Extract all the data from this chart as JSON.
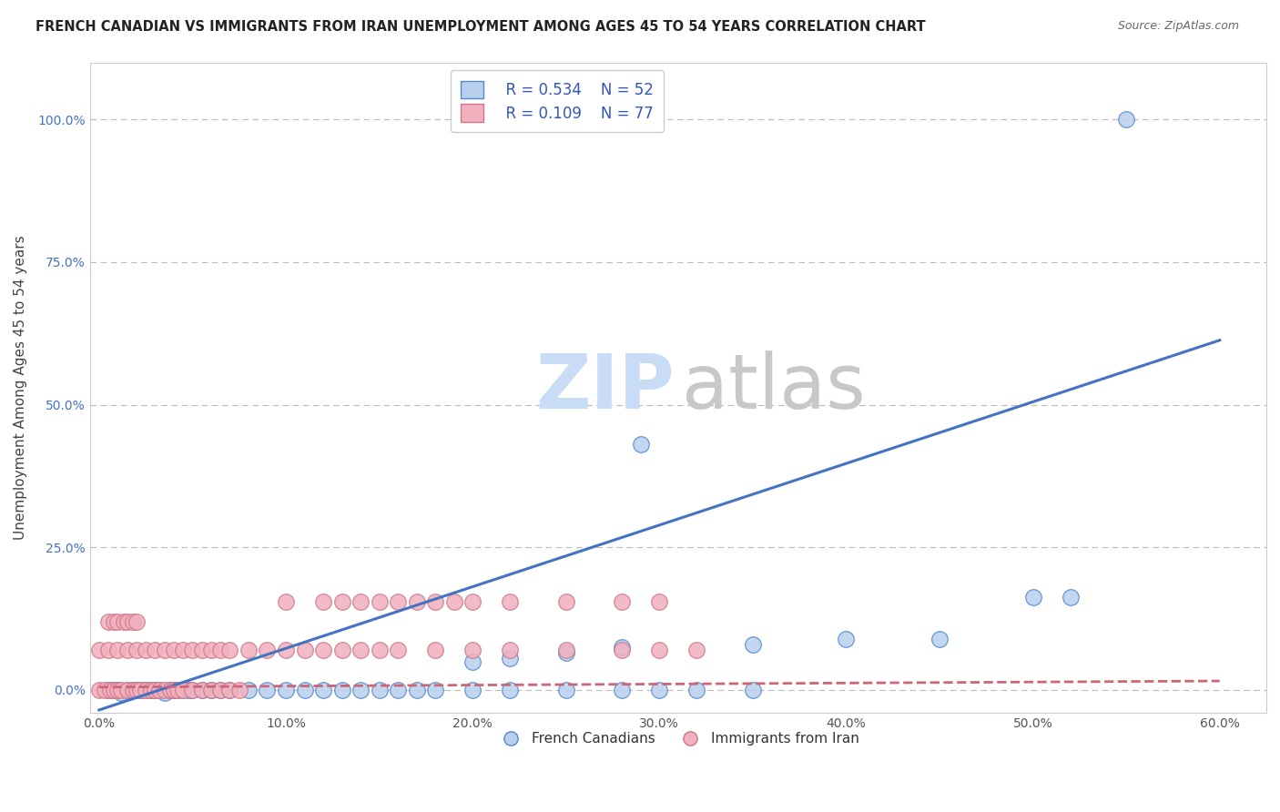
{
  "title": "FRENCH CANADIAN VS IMMIGRANTS FROM IRAN UNEMPLOYMENT AMONG AGES 45 TO 54 YEARS CORRELATION CHART",
  "source": "Source: ZipAtlas.com",
  "ylabel": "Unemployment Among Ages 45 to 54 years",
  "xlim_min": -0.005,
  "xlim_max": 0.625,
  "ylim_min": -0.04,
  "ylim_max": 1.1,
  "yticks": [
    0.0,
    0.25,
    0.5,
    0.75,
    1.0
  ],
  "ytick_labels": [
    "0.0%",
    "25.0%",
    "50.0%",
    "75.0%",
    "100.0%"
  ],
  "xticks": [
    0.0,
    0.1,
    0.2,
    0.3,
    0.4,
    0.5,
    0.6
  ],
  "xtick_labels": [
    "0.0%",
    "10.0%",
    "20.0%",
    "30.0%",
    "40.0%",
    "50.0%",
    "60.0%"
  ],
  "legend_labels": [
    "French Canadians",
    "Immigrants from Iran"
  ],
  "blue_R": "0.534",
  "blue_N": "52",
  "pink_R": "0.109",
  "pink_N": "77",
  "blue_face_color": "#b8d0ed",
  "pink_face_color": "#f2b0be",
  "blue_edge_color": "#5588cc",
  "pink_edge_color": "#cc7788",
  "blue_line_color": "#4472c4",
  "pink_line_color": "#cc6677",
  "grid_color": "#bbbbbb",
  "spine_color": "#cccccc",
  "title_color": "#222222",
  "source_color": "#666666",
  "legend_text_color": "#3355bb",
  "blue_slope": 1.08,
  "blue_intercept": -0.035,
  "pink_slope": 0.018,
  "pink_intercept": 0.005,
  "blue_x": [
    0.005,
    0.008,
    0.01,
    0.012,
    0.015,
    0.018,
    0.02,
    0.022,
    0.025,
    0.028,
    0.03,
    0.032,
    0.035,
    0.038,
    0.04,
    0.042,
    0.045,
    0.048,
    0.05,
    0.055,
    0.06,
    0.065,
    0.07,
    0.08,
    0.09,
    0.1,
    0.11,
    0.12,
    0.13,
    0.14,
    0.15,
    0.16,
    0.17,
    0.18,
    0.2,
    0.22,
    0.25,
    0.28,
    0.3,
    0.32,
    0.35,
    0.2,
    0.22,
    0.25,
    0.28,
    0.35,
    0.4,
    0.45,
    0.5,
    0.52,
    0.55,
    0.29
  ],
  "blue_y": [
    0.0,
    0.0,
    0.0,
    -0.005,
    0.0,
    0.0,
    0.0,
    0.0,
    0.0,
    0.0,
    0.0,
    0.0,
    -0.005,
    0.0,
    0.0,
    0.0,
    0.0,
    0.0,
    0.0,
    0.0,
    0.0,
    0.0,
    0.0,
    0.0,
    0.0,
    0.0,
    0.0,
    0.0,
    0.0,
    0.0,
    0.0,
    0.0,
    0.0,
    0.0,
    0.0,
    0.0,
    0.0,
    0.0,
    0.0,
    0.0,
    0.0,
    0.05,
    0.055,
    0.065,
    0.075,
    0.08,
    0.09,
    0.09,
    0.163,
    0.163,
    1.0,
    0.43
  ],
  "pink_x": [
    0.0,
    0.003,
    0.006,
    0.008,
    0.01,
    0.012,
    0.015,
    0.018,
    0.02,
    0.022,
    0.025,
    0.028,
    0.03,
    0.032,
    0.035,
    0.038,
    0.04,
    0.042,
    0.045,
    0.05,
    0.055,
    0.06,
    0.065,
    0.07,
    0.075,
    0.0,
    0.005,
    0.01,
    0.015,
    0.02,
    0.025,
    0.03,
    0.035,
    0.04,
    0.045,
    0.05,
    0.055,
    0.06,
    0.065,
    0.07,
    0.08,
    0.09,
    0.1,
    0.11,
    0.12,
    0.13,
    0.14,
    0.15,
    0.16,
    0.18,
    0.2,
    0.22,
    0.25,
    0.28,
    0.3,
    0.32,
    0.1,
    0.12,
    0.13,
    0.14,
    0.15,
    0.16,
    0.17,
    0.18,
    0.19,
    0.2,
    0.22,
    0.25,
    0.28,
    0.3,
    0.005,
    0.008,
    0.01,
    0.013,
    0.015,
    0.018,
    0.02
  ],
  "pink_y": [
    0.0,
    0.0,
    0.0,
    0.0,
    0.0,
    0.0,
    0.0,
    0.0,
    0.0,
    0.0,
    0.0,
    0.0,
    0.0,
    0.0,
    0.0,
    0.0,
    0.0,
    0.0,
    0.0,
    0.0,
    0.0,
    0.0,
    0.0,
    0.0,
    0.0,
    0.07,
    0.07,
    0.07,
    0.07,
    0.07,
    0.07,
    0.07,
    0.07,
    0.07,
    0.07,
    0.07,
    0.07,
    0.07,
    0.07,
    0.07,
    0.07,
    0.07,
    0.07,
    0.07,
    0.07,
    0.07,
    0.07,
    0.07,
    0.07,
    0.07,
    0.07,
    0.07,
    0.07,
    0.07,
    0.07,
    0.07,
    0.155,
    0.155,
    0.155,
    0.155,
    0.155,
    0.155,
    0.155,
    0.155,
    0.155,
    0.155,
    0.155,
    0.155,
    0.155,
    0.155,
    0.12,
    0.12,
    0.12,
    0.12,
    0.12,
    0.12,
    0.12
  ]
}
